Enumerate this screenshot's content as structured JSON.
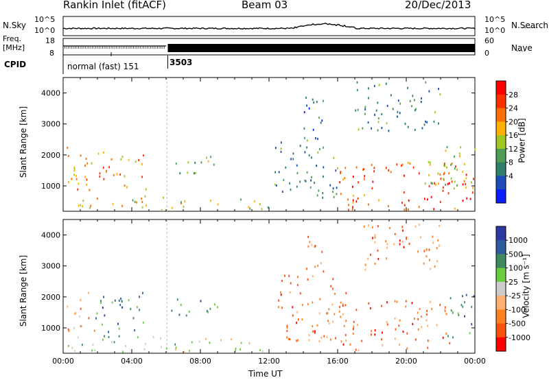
{
  "header": {
    "station": "Rankin Inlet (fitACF)",
    "beam": "Beam 03",
    "date": "20/Dec/2013"
  },
  "top_panels": {
    "nsky_label": "N.Sky",
    "nsearch_label": "N.Search",
    "nsky_ticks": [
      "10^5",
      "10^0"
    ],
    "nsearch_ticks": [
      "10^5",
      "10^0"
    ],
    "freq_label_1": "Freq.",
    "freq_label_2": "[MHz]",
    "freq_ticks": [
      "18",
      "8"
    ],
    "nave_label": "Nave",
    "nave_ticks": [
      "60",
      "0"
    ],
    "cpid_label": "CPID",
    "cpid_segments": [
      {
        "label": "normal (fast) 151",
        "start_hour": 0,
        "end_hour": 6
      },
      {
        "label": "3503",
        "start_hour": 6,
        "end_hour": 24
      }
    ]
  },
  "chart_data": [
    {
      "type": "heatmap",
      "title": "",
      "xlabel": "",
      "ylabel": "Slant Range [km]",
      "xlim": [
        0,
        24
      ],
      "ylim": [
        180,
        4500
      ],
      "y_ticks": [
        1000,
        2000,
        3000,
        4000
      ],
      "colorbar_label": "Power [dB]",
      "colorbar_ticks": [
        "28",
        "24",
        "20",
        "16",
        "12",
        "8",
        "4"
      ],
      "colorscale": [
        "#0a1eff",
        "#1c4cba",
        "#2e7f6c",
        "#4f9e56",
        "#9ec722",
        "#ffb000",
        "#ff7000",
        "#ff3000",
        "#ff0000"
      ],
      "regions": [
        {
          "t0": 0.2,
          "t1": 4.8,
          "r0": 900,
          "r1": 2300,
          "level": 0.7
        },
        {
          "t0": 0.1,
          "t1": 6.0,
          "r0": 250,
          "r1": 700,
          "level": 0.6
        },
        {
          "t0": 6.3,
          "t1": 9.0,
          "r0": 1400,
          "r1": 2000,
          "level": 0.45
        },
        {
          "t0": 6.3,
          "t1": 12.0,
          "r0": 250,
          "r1": 600,
          "level": 0.55
        },
        {
          "t0": 12.3,
          "t1": 16.0,
          "r0": 600,
          "r1": 2700,
          "level": 0.3
        },
        {
          "t0": 14.0,
          "t1": 15.2,
          "r0": 2500,
          "r1": 4000,
          "level": 0.2
        },
        {
          "t0": 16.0,
          "t1": 24.0,
          "r0": 250,
          "r1": 1800,
          "level": 0.8
        },
        {
          "t0": 17.0,
          "t1": 22.0,
          "r0": 2800,
          "r1": 4400,
          "level": 0.3
        },
        {
          "t0": 21.0,
          "t1": 24.0,
          "r0": 900,
          "r1": 2300,
          "level": 0.5
        }
      ]
    },
    {
      "type": "heatmap",
      "title": "",
      "xlabel": "Time UT",
      "ylabel": "Slant Range [km]",
      "xlim": [
        0,
        24
      ],
      "ylim": [
        180,
        4500
      ],
      "x_ticks": [
        "00:00",
        "04:00",
        "08:00",
        "12:00",
        "16:00",
        "20:00",
        "00:00"
      ],
      "y_ticks": [
        1000,
        2000,
        3000,
        4000
      ],
      "colorbar_label": "Velocity [m s⁻¹]",
      "colorbar_ticks": [
        "1000",
        "500",
        "100",
        "25",
        "-25",
        "-100",
        "-500",
        "-1000"
      ],
      "colorscale": [
        "#2a3aa0",
        "#2e5aa0",
        "#3e8a60",
        "#6ccc40",
        "#cccccc",
        "#ffb070",
        "#ff8020",
        "#ff5010",
        "#ff0000"
      ],
      "regions": [
        {
          "t0": 0.2,
          "t1": 1.8,
          "r0": 900,
          "r1": 2200,
          "level": 0.65
        },
        {
          "t0": 1.8,
          "t1": 4.8,
          "r0": 900,
          "r1": 2200,
          "level": 0.25
        },
        {
          "t0": 0.1,
          "t1": 6.0,
          "r0": 250,
          "r1": 800,
          "level": 0.4
        },
        {
          "t0": 6.3,
          "t1": 9.0,
          "r0": 1400,
          "r1": 2000,
          "level": 0.25
        },
        {
          "t0": 6.3,
          "t1": 12.0,
          "r0": 250,
          "r1": 700,
          "level": 0.45
        },
        {
          "t0": 12.5,
          "t1": 16.5,
          "r0": 600,
          "r1": 2800,
          "level": 0.75
        },
        {
          "t0": 14.0,
          "t1": 15.2,
          "r0": 2500,
          "r1": 4000,
          "level": 0.75
        },
        {
          "t0": 16.0,
          "t1": 22.5,
          "r0": 300,
          "r1": 1900,
          "level": 0.78
        },
        {
          "t0": 17.5,
          "t1": 22.0,
          "r0": 2800,
          "r1": 4400,
          "level": 0.75
        },
        {
          "t0": 22.3,
          "t1": 24.0,
          "r0": 700,
          "r1": 2200,
          "level": 0.25
        }
      ]
    }
  ]
}
